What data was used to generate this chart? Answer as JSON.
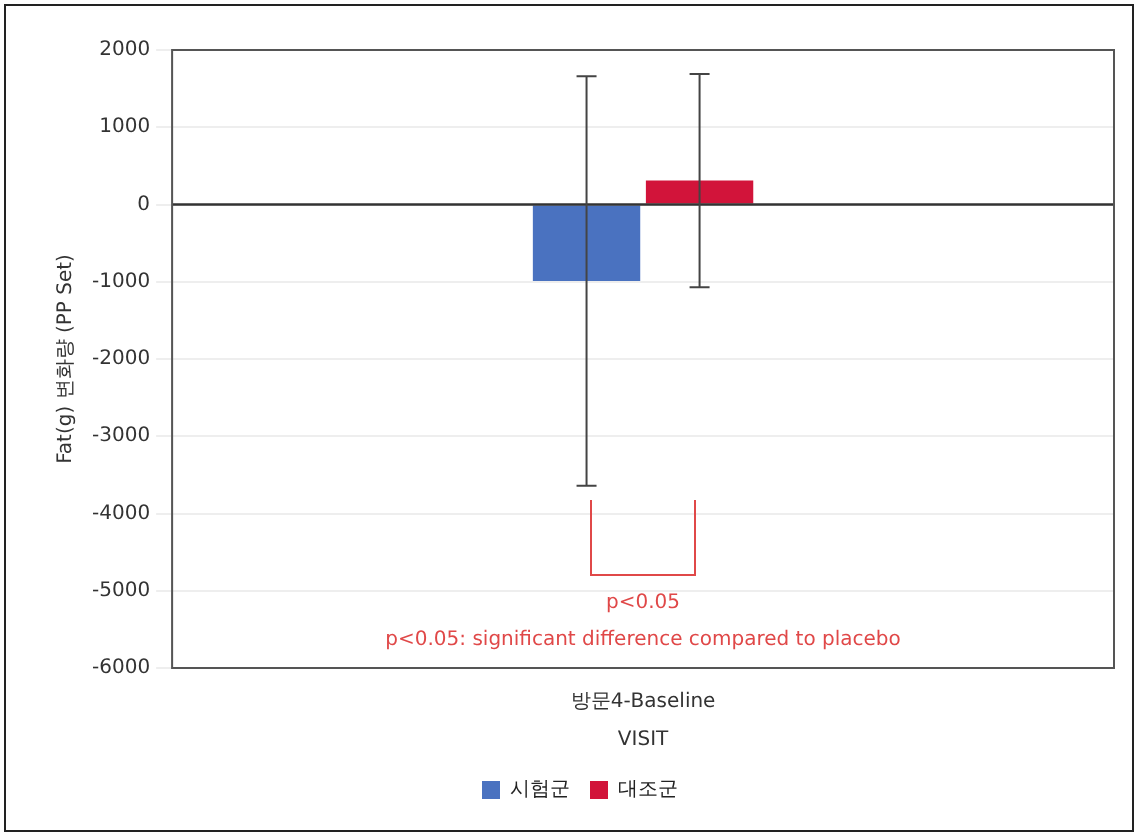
{
  "chart_data": {
    "type": "bar",
    "xlabel": "VISIT",
    "ylabel": "Fat(g) 변화량 (PP Set)",
    "categories": [
      "방문4-Baseline"
    ],
    "series": [
      {
        "name": "시험군",
        "color": "#4a72c0",
        "values": [
          -990
        ],
        "errors": [
          2650
        ]
      },
      {
        "name": "대조군",
        "color": "#d2143a",
        "values": [
          310
        ],
        "errors": [
          1380
        ]
      }
    ],
    "ylim": [
      -6000,
      2000
    ],
    "yticks": [
      -6000,
      -5000,
      -4000,
      -3000,
      -2000,
      -1000,
      0,
      1000,
      2000
    ],
    "grid": "y",
    "legend": "bottom",
    "ref_lines": [
      {
        "axis": "y",
        "value": 0,
        "color": "#333333"
      }
    ],
    "annotations": [
      "p<0.05",
      "p<0.05: significant difference compared to placebo"
    ]
  }
}
